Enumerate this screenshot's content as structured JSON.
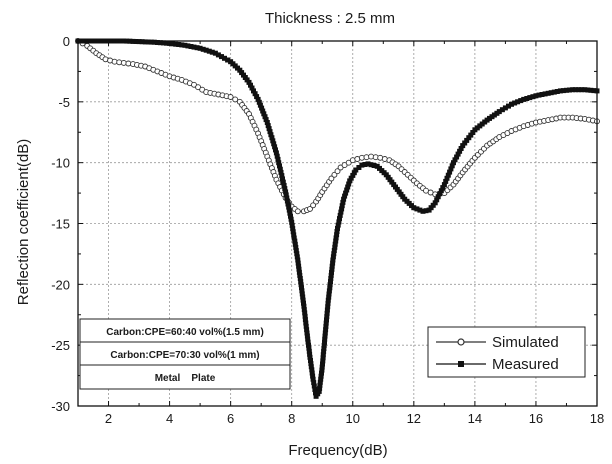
{
  "chart_data": {
    "type": "line",
    "title": "Thickness : 2.5 mm",
    "xlabel": "Frequency(dB)",
    "ylabel": "Reflection coefficient(dB)",
    "xlim": [
      1,
      18
    ],
    "ylim": [
      -30,
      0
    ],
    "xticks": [
      2,
      4,
      6,
      8,
      10,
      12,
      14,
      16,
      18
    ],
    "yticks": [
      0,
      -5,
      -10,
      -15,
      -20,
      -25,
      -30
    ],
    "grid": true,
    "legend_position": "bottom-right",
    "series": [
      {
        "name": "Simulated",
        "marker": "open-circle",
        "color": "#333333",
        "x": [
          1.0,
          1.3,
          1.6,
          1.9,
          2.2,
          2.5,
          2.8,
          3.2,
          3.6,
          4.0,
          4.4,
          4.8,
          5.2,
          5.6,
          6.0,
          6.3,
          6.6,
          6.9,
          7.2,
          7.5,
          7.8,
          8.0,
          8.2,
          8.4,
          8.6,
          8.8,
          9.0,
          9.3,
          9.6,
          10.0,
          10.3,
          10.6,
          10.9,
          11.2,
          11.5,
          11.8,
          12.1,
          12.4,
          12.7,
          13.0,
          13.3,
          13.6,
          14.0,
          14.4,
          14.8,
          15.2,
          15.6,
          16.0,
          16.4,
          16.8,
          17.2,
          17.6,
          18.0
        ],
        "y": [
          0.0,
          -0.4,
          -1.0,
          -1.5,
          -1.7,
          -1.8,
          -1.9,
          -2.1,
          -2.5,
          -2.9,
          -3.2,
          -3.6,
          -4.2,
          -4.4,
          -4.6,
          -5.0,
          -6.0,
          -7.6,
          -9.5,
          -11.4,
          -12.9,
          -13.6,
          -14.0,
          -14.0,
          -13.8,
          -13.2,
          -12.4,
          -11.3,
          -10.4,
          -9.8,
          -9.6,
          -9.5,
          -9.6,
          -9.8,
          -10.3,
          -11.0,
          -11.7,
          -12.3,
          -12.6,
          -12.5,
          -11.8,
          -10.8,
          -9.6,
          -8.6,
          -7.9,
          -7.4,
          -7.0,
          -6.7,
          -6.5,
          -6.3,
          -6.3,
          -6.4,
          -6.6
        ]
      },
      {
        "name": "Measured",
        "marker": "filled-square",
        "color": "#111111",
        "x": [
          1.0,
          1.5,
          2.0,
          2.5,
          3.0,
          3.5,
          4.0,
          4.5,
          5.0,
          5.5,
          6.0,
          6.3,
          6.6,
          6.9,
          7.2,
          7.5,
          7.8,
          8.0,
          8.2,
          8.4,
          8.5,
          8.6,
          8.7,
          8.8,
          8.9,
          9.0,
          9.1,
          9.2,
          9.35,
          9.5,
          9.7,
          9.9,
          10.1,
          10.3,
          10.5,
          10.8,
          11.1,
          11.4,
          11.7,
          12.0,
          12.3,
          12.5,
          12.7,
          13.0,
          13.3,
          13.6,
          14.0,
          14.4,
          14.8,
          15.2,
          15.6,
          16.0,
          16.4,
          16.8,
          17.2,
          17.6,
          18.0
        ],
        "y": [
          0.0,
          0.0,
          0.0,
          0.0,
          -0.05,
          -0.1,
          -0.2,
          -0.35,
          -0.6,
          -1.0,
          -1.7,
          -2.4,
          -3.4,
          -4.8,
          -6.7,
          -9.2,
          -12.4,
          -14.9,
          -18.0,
          -21.8,
          -24.0,
          -26.0,
          -27.8,
          -29.2,
          -28.8,
          -26.8,
          -24.0,
          -21.3,
          -18.0,
          -15.4,
          -13.0,
          -11.5,
          -10.6,
          -10.2,
          -10.1,
          -10.3,
          -11.0,
          -12.0,
          -13.0,
          -13.7,
          -14.0,
          -13.9,
          -13.3,
          -11.8,
          -10.0,
          -8.6,
          -7.3,
          -6.5,
          -5.8,
          -5.2,
          -4.8,
          -4.5,
          -4.3,
          -4.1,
          -4.0,
          -4.0,
          -4.1
        ]
      }
    ],
    "inset_table": {
      "rows": [
        "Carbon:CPE=60:40 vol%(1.5 mm)",
        "Carbon:CPE=70:30 vol%(1 mm)",
        "Metal    Plate"
      ]
    }
  }
}
